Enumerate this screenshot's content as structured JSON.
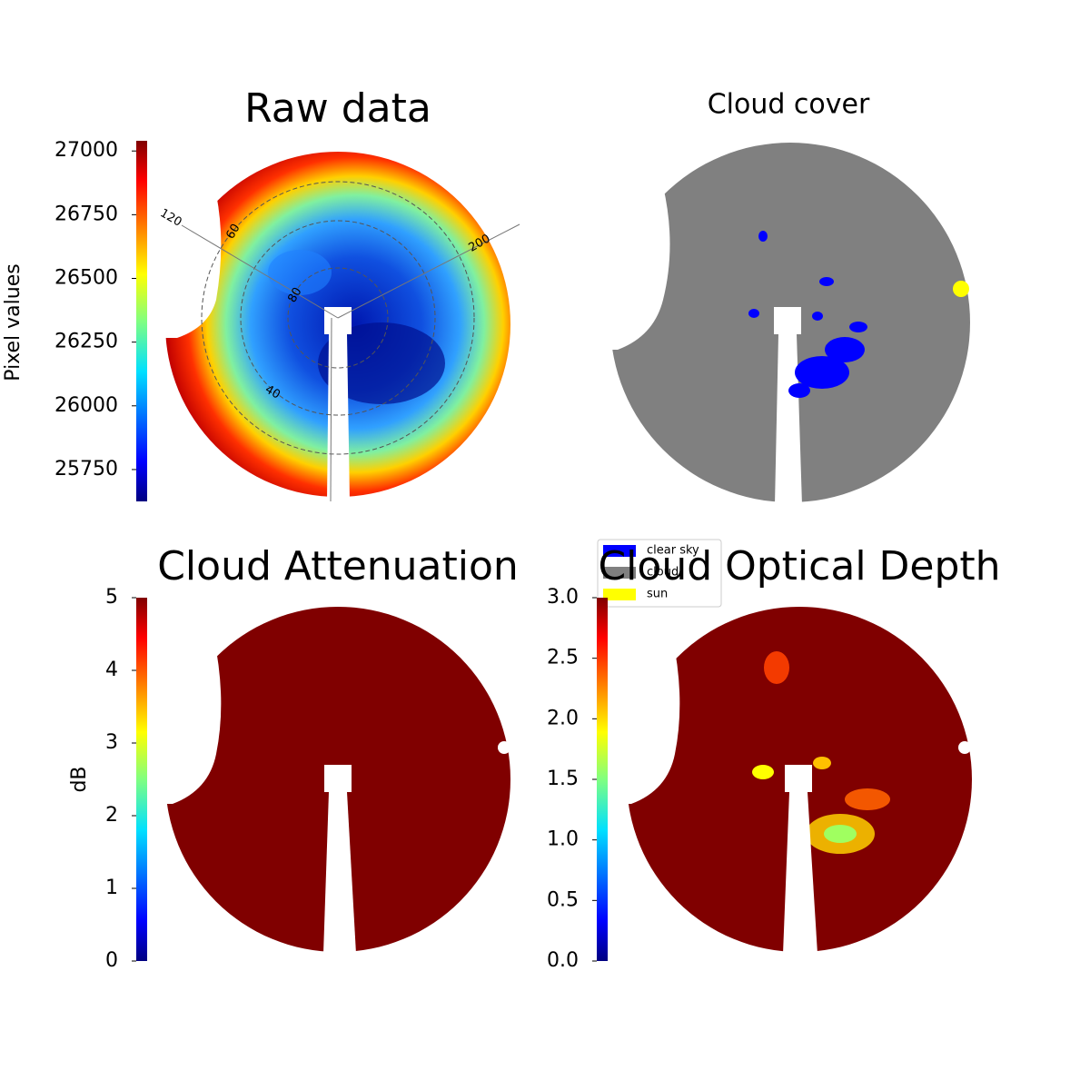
{
  "chart_data": [
    {
      "type": "image",
      "title": "Raw data",
      "colorbar": {
        "label": "Pixel values",
        "colormap": "jet",
        "lim": [
          25625,
          27040
        ],
        "ticks": [
          25750,
          26000,
          26250,
          26500,
          26750,
          27000
        ]
      },
      "annotations": [
        "120",
        "60",
        "80",
        "200",
        "40"
      ]
    },
    {
      "type": "image",
      "title": "Cloud cover",
      "legend": [
        {
          "name": "clear sky",
          "color": "#0000ff"
        },
        {
          "name": "cloud",
          "color": "#808080"
        },
        {
          "name": "sun",
          "color": "#ffff00"
        }
      ]
    },
    {
      "type": "image",
      "title": "Cloud Attenuation",
      "colorbar": {
        "label": "dB",
        "colormap": "jet",
        "lim": [
          0,
          5
        ],
        "ticks": [
          0,
          1,
          2,
          3,
          4,
          5
        ]
      }
    },
    {
      "type": "image",
      "title": "Cloud Optical Depth",
      "colorbar": {
        "colormap": "jet",
        "lim": [
          0,
          3
        ],
        "ticks": [
          {
            "value": 0,
            "label": "0.0"
          },
          {
            "value": 0.5,
            "label": "0.5"
          },
          {
            "value": 1,
            "label": "1.0"
          },
          {
            "value": 1.5,
            "label": "1.5"
          },
          {
            "value": 2,
            "label": "2.0"
          },
          {
            "value": 2.5,
            "label": "2.5"
          },
          {
            "value": 3,
            "label": "3.0"
          }
        ]
      }
    }
  ]
}
